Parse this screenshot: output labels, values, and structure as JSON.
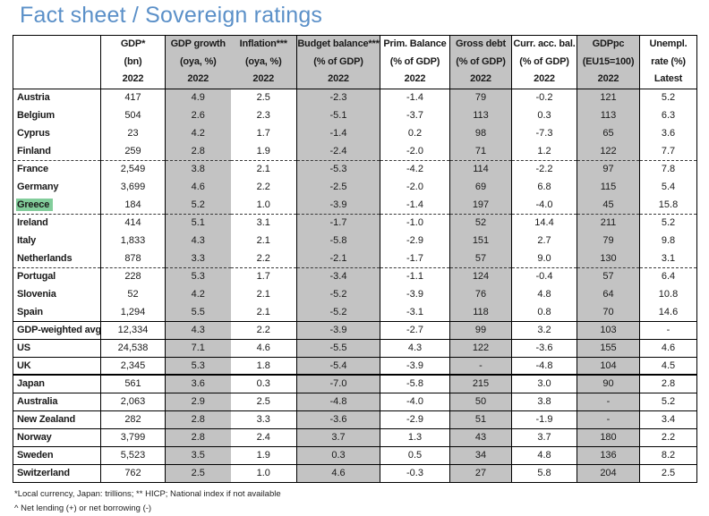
{
  "title": "Fact sheet / Sovereign ratings",
  "colors": {
    "title_blue": "#5b90c8",
    "shaded_gray": "#c3c3c3",
    "highlight_green": "#82cd9b"
  },
  "table": {
    "header": {
      "columns": [
        {
          "id": "country",
          "lines": [
            "",
            "",
            ""
          ],
          "shaded": false
        },
        {
          "id": "gdp",
          "lines": [
            "GDP*",
            "(bn)",
            "2022"
          ],
          "shaded": false
        },
        {
          "id": "gdp-growth",
          "lines": [
            "GDP growth",
            "(oya, %)",
            "2022"
          ],
          "shaded": true
        },
        {
          "id": "inflation",
          "lines": [
            "Inflation***",
            "(oya, %)",
            "2022"
          ],
          "shaded": true
        },
        {
          "id": "budget-balance",
          "lines": [
            "Budget balance***",
            "(% of GDP)",
            "2022"
          ],
          "shaded": true
        },
        {
          "id": "prim-balance",
          "lines": [
            "Prim. Balance",
            "(% of GDP)",
            "2022"
          ],
          "shaded": false
        },
        {
          "id": "gross-debt",
          "lines": [
            "Gross debt",
            "(% of GDP)",
            "2022"
          ],
          "shaded": true
        },
        {
          "id": "curr-acc-bal",
          "lines": [
            "Curr. acc. bal.",
            "(% of GDP)",
            "2022"
          ],
          "shaded": false
        },
        {
          "id": "gdppc",
          "lines": [
            "GDPpc",
            "(EU15=100)",
            "2022"
          ],
          "shaded": true
        },
        {
          "id": "unempl",
          "lines": [
            "Unempl.",
            "rate (%)",
            "Latest"
          ],
          "shaded": false
        }
      ]
    },
    "shaded_data_columns": [
      2,
      4,
      6,
      8
    ],
    "rows": [
      {
        "country": "Austria",
        "highlight": false,
        "sep": "none",
        "values": [
          "417",
          "4.9",
          "2.5",
          "-2.3",
          "-1.4",
          "79",
          "-0.2",
          "121",
          "5.2"
        ]
      },
      {
        "country": "Belgium",
        "highlight": false,
        "sep": "none",
        "values": [
          "504",
          "2.6",
          "2.3",
          "-5.1",
          "-3.7",
          "113",
          "0.3",
          "113",
          "6.3"
        ]
      },
      {
        "country": "Cyprus",
        "highlight": false,
        "sep": "none",
        "values": [
          "23",
          "4.2",
          "1.7",
          "-1.4",
          "0.2",
          "98",
          "-7.3",
          "65",
          "3.6"
        ]
      },
      {
        "country": "Finland",
        "highlight": false,
        "sep": "none",
        "values": [
          "259",
          "2.8",
          "1.9",
          "-2.4",
          "-2.0",
          "71",
          "1.2",
          "122",
          "7.7"
        ]
      },
      {
        "country": "France",
        "highlight": false,
        "sep": "dashed",
        "values": [
          "2,549",
          "3.8",
          "2.1",
          "-5.3",
          "-4.2",
          "114",
          "-2.2",
          "97",
          "7.8"
        ]
      },
      {
        "country": "Germany",
        "highlight": false,
        "sep": "none",
        "values": [
          "3,699",
          "4.6",
          "2.2",
          "-2.5",
          "-2.0",
          "69",
          "6.8",
          "115",
          "5.4"
        ]
      },
      {
        "country": "Greece",
        "highlight": true,
        "sep": "none",
        "values": [
          "184",
          "5.2",
          "1.0",
          "-3.9",
          "-1.4",
          "197",
          "-4.0",
          "45",
          "15.8"
        ]
      },
      {
        "country": "Ireland",
        "highlight": false,
        "sep": "dashed",
        "values": [
          "414",
          "5.1",
          "3.1",
          "-1.7",
          "-1.0",
          "52",
          "14.4",
          "211",
          "5.2"
        ]
      },
      {
        "country": "Italy",
        "highlight": false,
        "sep": "none",
        "values": [
          "1,833",
          "4.3",
          "2.1",
          "-5.8",
          "-2.9",
          "151",
          "2.7",
          "79",
          "9.8"
        ]
      },
      {
        "country": "Netherlands",
        "highlight": false,
        "sep": "none",
        "values": [
          "878",
          "3.3",
          "2.2",
          "-2.1",
          "-1.7",
          "57",
          "9.0",
          "130",
          "3.1"
        ]
      },
      {
        "country": "Portugal",
        "highlight": false,
        "sep": "dashed",
        "values": [
          "228",
          "5.3",
          "1.7",
          "-3.4",
          "-1.1",
          "124",
          "-0.4",
          "57",
          "6.4"
        ]
      },
      {
        "country": "Slovenia",
        "highlight": false,
        "sep": "none",
        "values": [
          "52",
          "4.2",
          "2.1",
          "-5.2",
          "-3.9",
          "76",
          "4.8",
          "64",
          "10.8"
        ]
      },
      {
        "country": "Spain",
        "highlight": false,
        "sep": "none",
        "values": [
          "1,294",
          "5.5",
          "2.1",
          "-5.2",
          "-3.1",
          "118",
          "0.8",
          "70",
          "14.6"
        ]
      },
      {
        "country": "GDP-weighted avg",
        "highlight": false,
        "sep": "solid",
        "values": [
          "12,334",
          "4.3",
          "2.2",
          "-3.9",
          "-2.7",
          "99",
          "3.2",
          "103",
          "-"
        ]
      },
      {
        "country": "US",
        "highlight": false,
        "sep": "solid",
        "values": [
          "24,538",
          "7.1",
          "4.6",
          "-5.5",
          "4.3",
          "122",
          "-3.6",
          "155",
          "4.6"
        ]
      },
      {
        "country": "UK",
        "highlight": false,
        "sep": "solid",
        "values": [
          "2,345",
          "5.3",
          "1.8",
          "-5.4",
          "-3.9",
          "-",
          "-4.8",
          "104",
          "4.5"
        ]
      },
      {
        "country": "Japan",
        "highlight": false,
        "sep": "thick",
        "values": [
          "561",
          "3.6",
          "0.3",
          "-7.0",
          "-5.8",
          "215",
          "3.0",
          "90",
          "2.8"
        ]
      },
      {
        "country": "Australia",
        "highlight": false,
        "sep": "solid",
        "values": [
          "2,063",
          "2.9",
          "2.5",
          "-4.8",
          "-4.0",
          "50",
          "3.8",
          "-",
          "5.2"
        ]
      },
      {
        "country": "New Zealand",
        "highlight": false,
        "sep": "solid",
        "values": [
          "282",
          "2.8",
          "3.3",
          "-3.6",
          "-2.9",
          "51",
          "-1.9",
          "-",
          "3.4"
        ]
      },
      {
        "country": "Norway",
        "highlight": false,
        "sep": "solid",
        "values": [
          "3,799",
          "2.8",
          "2.4",
          "3.7",
          "1.3",
          "43",
          "3.7",
          "180",
          "2.2"
        ]
      },
      {
        "country": "Sweden",
        "highlight": false,
        "sep": "solid",
        "values": [
          "5,523",
          "3.5",
          "1.9",
          "0.3",
          "0.5",
          "34",
          "4.8",
          "136",
          "8.2"
        ]
      },
      {
        "country": "Switzerland",
        "highlight": false,
        "sep": "solid",
        "values": [
          "762",
          "2.5",
          "1.0",
          "4.6",
          "-0.3",
          "27",
          "5.8",
          "204",
          "2.5"
        ]
      }
    ]
  },
  "footnotes": [
    "*Local currency, Japan: trillions; ** HICP; National index if not available",
    "^ Net lending (+) or net borrowing (-)"
  ]
}
